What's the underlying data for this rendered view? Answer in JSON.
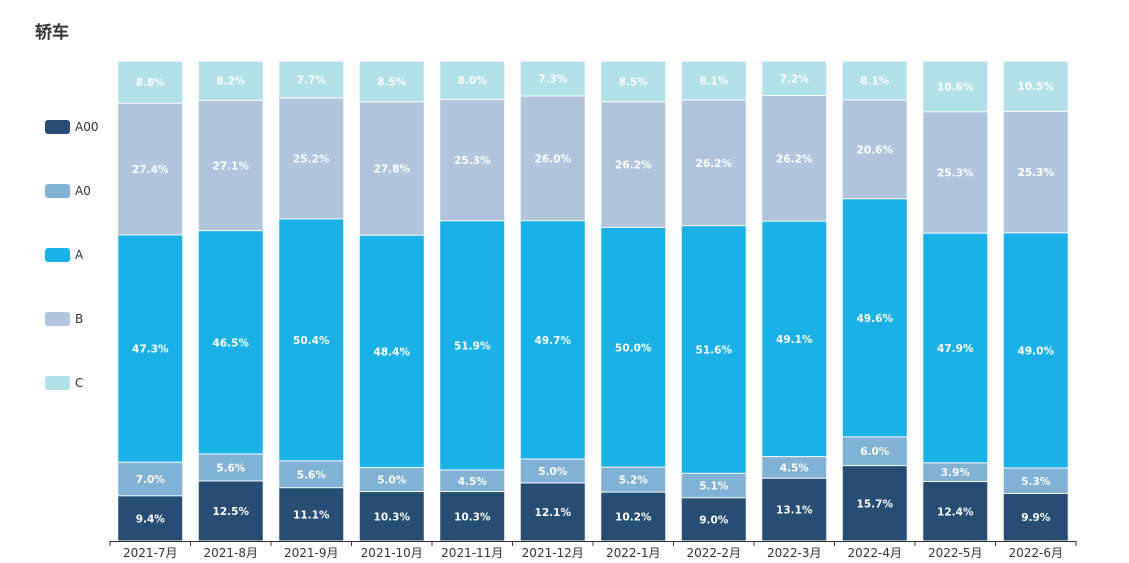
{
  "title": "轿车",
  "chart_data": {
    "type": "bar",
    "stacked": true,
    "percent": true,
    "title": "轿车",
    "legend_position": "left",
    "categories": [
      "2021-7月",
      "2021-8月",
      "2021-9月",
      "2021-10月",
      "2021-11月",
      "2021-12月",
      "2022-1月",
      "2022-2月",
      "2022-3月",
      "2022-4月",
      "2022-5月",
      "2022-6月"
    ],
    "series": [
      {
        "name": "A00",
        "color": "#264d73",
        "values": [
          9.4,
          12.5,
          11.1,
          10.3,
          10.3,
          12.1,
          10.2,
          9.0,
          13.1,
          15.7,
          12.4,
          9.9
        ]
      },
      {
        "name": "A0",
        "color": "#7fb2d4",
        "values": [
          7.0,
          5.6,
          5.6,
          5.0,
          4.5,
          5.0,
          5.2,
          5.1,
          4.5,
          6.0,
          3.9,
          5.3
        ]
      },
      {
        "name": "A",
        "color": "#1ab2e6",
        "values": [
          47.3,
          46.5,
          50.4,
          48.4,
          51.9,
          49.7,
          50.0,
          51.6,
          49.1,
          49.6,
          47.9,
          49.0
        ]
      },
      {
        "name": "B",
        "color": "#b0c4de",
        "values": [
          27.4,
          27.1,
          25.2,
          27.8,
          25.3,
          26.0,
          26.2,
          26.2,
          26.2,
          20.6,
          25.3,
          25.3
        ]
      },
      {
        "name": "C",
        "color": "#b0e0e8",
        "values": [
          8.8,
          8.2,
          7.7,
          8.5,
          8.0,
          7.3,
          8.5,
          8.1,
          7.2,
          8.1,
          10.6,
          10.5
        ]
      }
    ]
  }
}
